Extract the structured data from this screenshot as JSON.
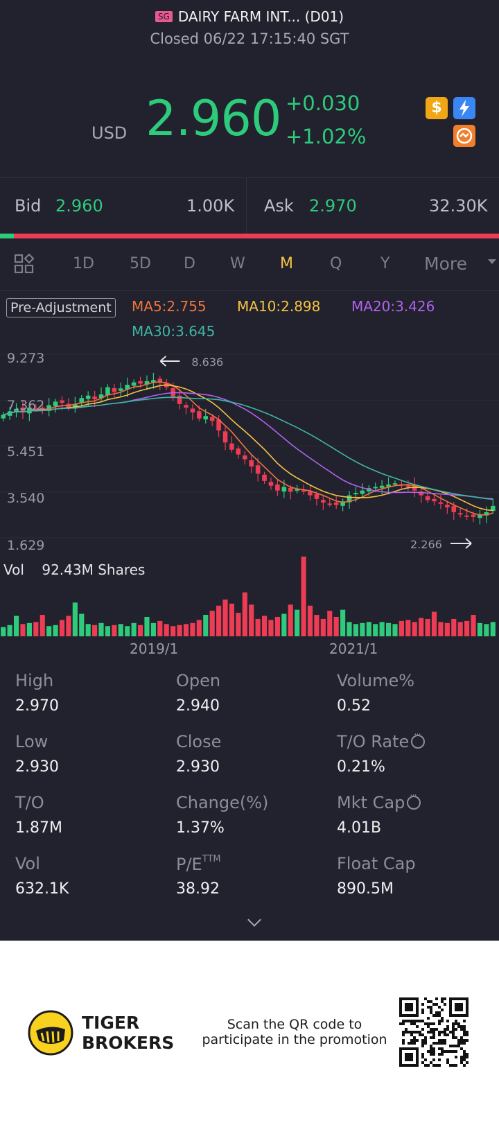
{
  "header": {
    "market_badge": "SG",
    "title": "DAIRY FARM INT... (D01)",
    "status": "Closed 06/22 17:15:40 SGT"
  },
  "quote": {
    "currency": "USD",
    "price": "2.960",
    "change": "+0.030",
    "change_pct": "+1.02%",
    "price_color": "#2ecb7c"
  },
  "icons": [
    "dollar-icon",
    "lightning-icon",
    "shield-icon"
  ],
  "bid_ask": {
    "bid_label": "Bid",
    "bid_price": "2.960",
    "bid_size": "1.00K",
    "ask_label": "Ask",
    "ask_price": "2.970",
    "ask_size": "32.30K",
    "bid_ratio": 0.03
  },
  "tabs": {
    "items": [
      "1D",
      "5D",
      "D",
      "W",
      "M",
      "Q",
      "Y"
    ],
    "active": "M",
    "more_label": "More"
  },
  "indicators": {
    "adjustment": "Pre-Adjustment",
    "ma5": "MA5:2.755",
    "ma10": "MA10:2.898",
    "ma20": "MA20:3.426",
    "ma30": "MA30:3.645",
    "colors": {
      "ma5": "#f0743c",
      "ma10": "#f6c343",
      "ma20": "#b461f0",
      "ma30": "#3fb6a8"
    }
  },
  "chart_data": {
    "type": "candlestick",
    "y_ticks": [
      "9.273",
      "7.362",
      "5.451",
      "3.540",
      "1.629"
    ],
    "ylim": [
      1.629,
      9.273
    ],
    "x_ticks": [
      "2019/1",
      "2021/1"
    ],
    "high_marker": "8.636",
    "low_marker": "2.266",
    "volume_label": "Vol",
    "volume_value": "92.43M Shares",
    "up_color": "#2ecb7c",
    "down_color": "#ee3c54",
    "closes": [
      6.75,
      6.9,
      7.0,
      6.85,
      7.05,
      7.0,
      6.95,
      7.15,
      7.3,
      7.25,
      7.05,
      7.2,
      7.45,
      7.55,
      7.4,
      7.6,
      7.9,
      7.7,
      7.85,
      8.0,
      8.1,
      8.05,
      8.15,
      8.2,
      8.1,
      7.9,
      7.5,
      7.2,
      7.05,
      6.85,
      6.6,
      6.7,
      6.5,
      6.1,
      5.6,
      5.3,
      5.1,
      4.9,
      4.6,
      4.3,
      4.0,
      3.8,
      3.6,
      3.75,
      3.55,
      3.65,
      3.6,
      3.4,
      3.25,
      3.1,
      3.05,
      3.0,
      3.15,
      3.4,
      3.5,
      3.6,
      3.7,
      3.75,
      3.8,
      3.85,
      3.9,
      3.85,
      3.8,
      3.6,
      3.4,
      3.2,
      3.15,
      3.05,
      2.9,
      2.7,
      2.6,
      2.55,
      2.5,
      2.6,
      2.7,
      2.96
    ],
    "volumes": [
      0.9,
      1.1,
      2.0,
      1.2,
      1.3,
      1.4,
      2.1,
      1.0,
      1.1,
      1.6,
      2.0,
      3.3,
      2.2,
      1.2,
      1.1,
      1.3,
      1.0,
      1.1,
      1.2,
      1.0,
      1.3,
      1.1,
      1.9,
      1.3,
      1.5,
      1.2,
      1.0,
      1.1,
      1.2,
      1.3,
      1.6,
      2.1,
      2.5,
      3.0,
      3.6,
      3.2,
      2.3,
      4.3,
      3.1,
      1.7,
      2.0,
      1.6,
      1.9,
      2.2,
      3.1,
      2.6,
      7.8,
      3.0,
      2.1,
      1.7,
      2.5,
      1.9,
      2.6,
      1.4,
      1.2,
      1.3,
      1.4,
      1.2,
      1.4,
      1.3,
      1.2,
      1.5,
      1.6,
      1.4,
      1.8,
      1.7,
      2.4,
      1.4,
      1.3,
      1.7,
      1.4,
      1.5,
      2.1,
      1.3,
      1.2,
      1.4
    ]
  },
  "stats": [
    {
      "label": "High",
      "value": "2.970"
    },
    {
      "label": "Open",
      "value": "2.940"
    },
    {
      "label": "Volume%",
      "value": "0.52"
    },
    {
      "label": "Low",
      "value": "2.930"
    },
    {
      "label": "Close",
      "value": "2.930"
    },
    {
      "label": "T/O Rate",
      "value": "0.21%"
    },
    {
      "label": "T/O",
      "value": "1.87M"
    },
    {
      "label": "Change(%)",
      "value": "1.37%"
    },
    {
      "label": "Mkt Cap",
      "value": "4.01B"
    },
    {
      "label": "Vol",
      "value": "632.1K"
    },
    {
      "label": "P/E",
      "label_sup": "TTM",
      "value": "38.92"
    },
    {
      "label": "Float Cap",
      "value": "890.5M"
    }
  ],
  "footer": {
    "brand_line1": "TIGER",
    "brand_line2": "BROKERS",
    "promo_line1": "Scan the QR code to",
    "promo_line2": "participate in the promotion"
  }
}
